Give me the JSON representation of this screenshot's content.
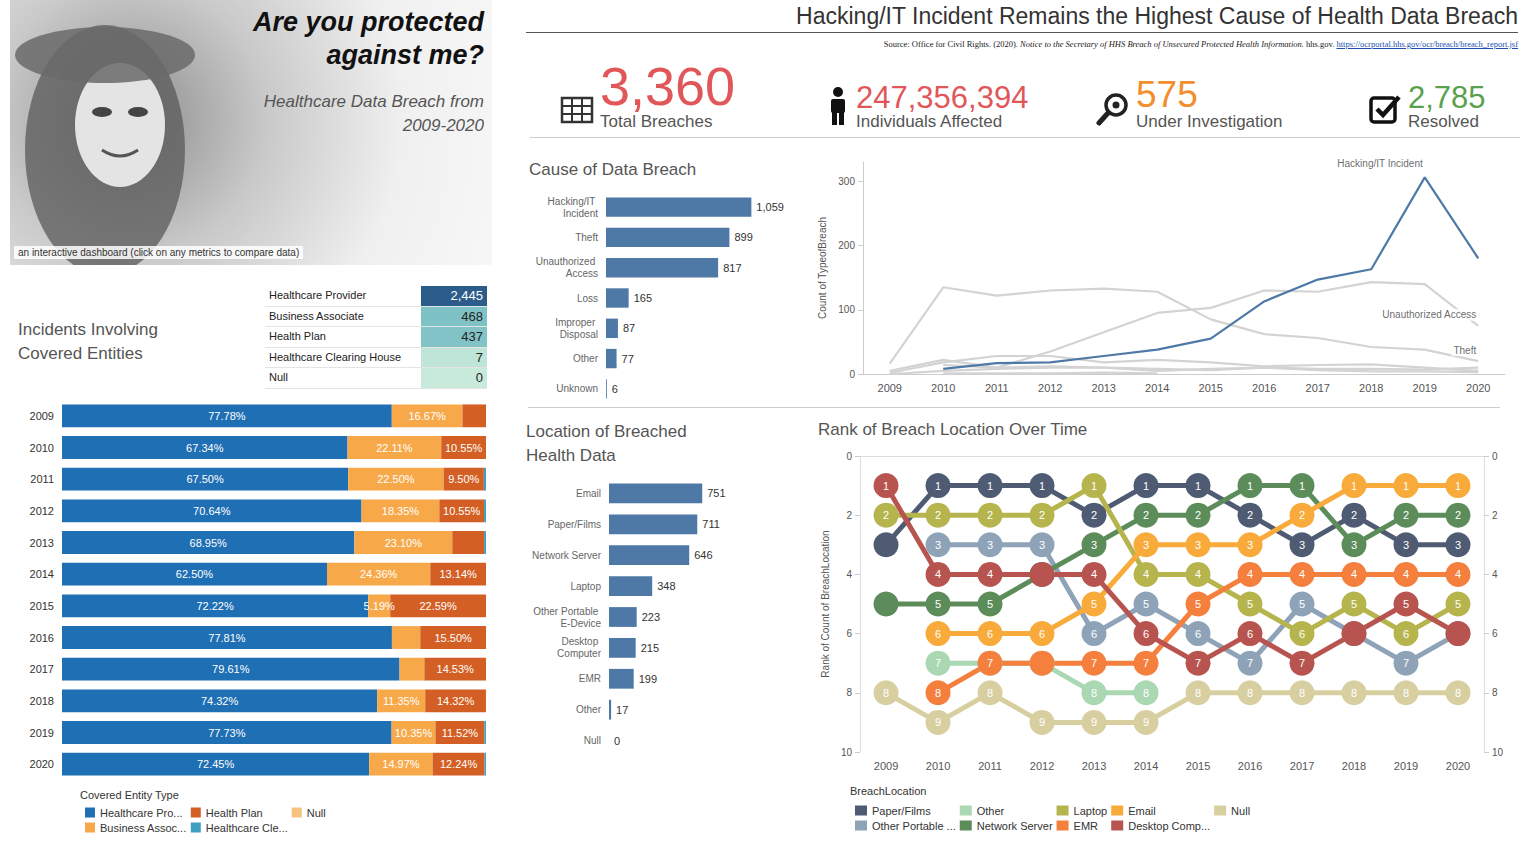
{
  "header": {
    "headline": "Are you protected against me?",
    "subtitle": "Healthcare Data Breach from 2009-2020",
    "caption": "an interactive dashboard (click on any metrics to compare data)",
    "title": "Hacking/IT Incident Remains the Highest Cause of Health Data Breach",
    "source": "Source: Office for Civil Rights. (2020).",
    "source_title": "Notice to the Secretary of HHS Breach of Unsecured Protected Health Information.",
    "source_site": "hhs.gov.",
    "source_url": "https://ocrportal.hhs.gov/ocr/breach/breach_report.jsf"
  },
  "kpis": [
    {
      "value": "3,360",
      "text": "Total Breaches",
      "color": "#e15759"
    },
    {
      "value": "247,356,394",
      "text": "Individuals Affected",
      "color": "#e15759"
    },
    {
      "value": "575",
      "text": "Under Investigation",
      "color": "#f28e2b"
    },
    {
      "value": "2,785",
      "text": "Resolved",
      "color": "#59a14f"
    }
  ],
  "table": {
    "title": "Incidents Involving Covered Entities",
    "rows": [
      {
        "name": "Healthcare Provider",
        "value": 2445,
        "label": "2,445"
      },
      {
        "name": "Business Associate",
        "value": 468,
        "label": "468"
      },
      {
        "name": "Health Plan",
        "value": 437,
        "label": "437"
      },
      {
        "name": "Healthcare Clearing House",
        "value": 7,
        "label": "7"
      },
      {
        "name": "Null",
        "value": 0,
        "label": "0"
      }
    ]
  },
  "chart_data": [
    {
      "type": "bar",
      "orientation": "horizontal",
      "stacked": true,
      "data_labels": true,
      "tick_labels": "y",
      "grid": false,
      "legend": "bottom",
      "legend_title": "Covered Entity Type",
      "categories": [
        "2009",
        "2010",
        "2011",
        "2012",
        "2013",
        "2014",
        "2015",
        "2016",
        "2017",
        "2018",
        "2019",
        "2020"
      ],
      "xlim": [
        0,
        100
      ],
      "series": [
        {
          "name": "Healthcare Pro...",
          "color": "#1f6fb4",
          "values": [
            77.78,
            67.34,
            67.5,
            70.64,
            68.95,
            62.5,
            72.22,
            77.81,
            79.61,
            74.32,
            77.73,
            72.45
          ],
          "value_labels": [
            "77.78%",
            "67.34%",
            "67.50%",
            "70.64%",
            "68.95%",
            "62.50%",
            "72.22%",
            "77.81%",
            "79.61%",
            "74.32%",
            "77.73%",
            "72.45%"
          ]
        },
        {
          "name": "Business Assoc...",
          "color": "#f7a94a",
          "values": [
            16.67,
            22.11,
            22.5,
            18.35,
            23.1,
            24.36,
            5.19,
            6.69,
            5.86,
            11.35,
            10.35,
            14.97
          ],
          "value_labels": [
            "16.67%",
            "22.11%",
            "22.50%",
            "18.35%",
            "23.10%",
            "24.36%",
            "5.19%",
            null,
            null,
            "11.35%",
            "10.35%",
            "14.97%"
          ]
        },
        {
          "name": "Health Plan",
          "color": "#d35f25",
          "values": [
            5.55,
            10.55,
            9.5,
            10.55,
            7.5,
            13.14,
            22.59,
            15.5,
            14.53,
            14.32,
            11.52,
            12.24
          ],
          "value_labels": [
            null,
            "10.55%",
            "9.50%",
            "10.55%",
            null,
            "13.14%",
            "22.59%",
            "15.50%",
            "14.53%",
            "14.32%",
            "11.52%",
            "12.24%"
          ]
        },
        {
          "name": "Healthcare Cle...",
          "color": "#3f9fc0",
          "values": [
            0,
            0,
            0.5,
            0.46,
            0.45,
            0,
            0,
            0,
            0,
            0,
            0.4,
            0.34
          ],
          "value_labels": [
            null,
            null,
            null,
            null,
            null,
            null,
            null,
            null,
            null,
            null,
            null,
            null
          ]
        },
        {
          "name": "Null",
          "color": "#f7c27e",
          "values": [
            0,
            0,
            0,
            0,
            0,
            0,
            0,
            0,
            0,
            0,
            0,
            0
          ],
          "value_labels": [
            null,
            null,
            null,
            null,
            null,
            null,
            null,
            null,
            null,
            null,
            null,
            null
          ]
        }
      ]
    },
    {
      "type": "bar",
      "orientation": "horizontal",
      "title": "Cause of Data Breach",
      "data_labels": true,
      "tick_labels": "y",
      "grid": false,
      "color": "#4e79a7",
      "xlim": [
        0,
        1100
      ],
      "categories": [
        "Hacking/IT Incident",
        "Theft",
        "Unauthorized Access",
        "Loss",
        "Improper Disposal",
        "Other",
        "Unknown"
      ],
      "values": [
        1059,
        899,
        817,
        165,
        87,
        77,
        6
      ],
      "value_labels": [
        "1,059",
        "899",
        "817",
        "165",
        "87",
        "77",
        "6"
      ]
    },
    {
      "type": "line",
      "y_label": "Count of TypeofBreach",
      "grid": false,
      "marker": "none",
      "categories": [
        "2009",
        "2010",
        "2011",
        "2012",
        "2013",
        "2014",
        "2015",
        "2016",
        "2017",
        "2018",
        "2019",
        "2020"
      ],
      "ylim": [
        0,
        330
      ],
      "yticks": [
        0,
        100,
        200,
        300
      ],
      "series": [
        {
          "name": "Theft",
          "color": "#d3d3d3",
          "values": [
            16,
            135,
            122,
            130,
            133,
            128,
            85,
            62,
            56,
            42,
            38,
            20
          ]
        },
        {
          "name": "Unauthorized Access",
          "color": "#d3d3d3",
          "values": [
            5,
            22,
            10,
            35,
            65,
            95,
            103,
            130,
            128,
            143,
            140,
            75
          ]
        },
        {
          "name": "Loss",
          "color": "#d3d3d3",
          "values": [
            2,
            18,
            28,
            28,
            18,
            22,
            18,
            12,
            14,
            15,
            10,
            5
          ]
        },
        {
          "name": "Improper Disposal",
          "color": "#d3d3d3",
          "values": [
            0,
            5,
            8,
            10,
            10,
            8,
            6,
            10,
            8,
            8,
            7,
            10
          ]
        },
        {
          "name": "Other",
          "color": "#d3d3d3",
          "values": [
            null,
            14,
            10,
            12,
            10,
            5,
            8,
            10,
            6,
            4,
            4,
            3
          ]
        },
        {
          "name": "Unknown",
          "color": "#d3d3d3",
          "values": [
            null,
            1,
            1,
            1,
            2,
            1,
            null,
            null,
            null,
            null,
            null,
            null
          ]
        },
        {
          "name": "Hacking/IT Incident",
          "color": "#4e79a7",
          "values": [
            null,
            8,
            17,
            18,
            28,
            38,
            55,
            113,
            147,
            163,
            306,
            180
          ]
        }
      ],
      "annotations": [
        {
          "text": "Hacking/IT Incident",
          "x": "2019",
          "y": 310
        },
        {
          "text": "Unauthorized Access",
          "x": "2020",
          "y": 75
        },
        {
          "text": "Theft",
          "x": "2020",
          "y": 20
        }
      ]
    },
    {
      "type": "bar",
      "orientation": "horizontal",
      "title": "Location of Breached Health Data",
      "data_labels": true,
      "tick_labels": "y",
      "grid": false,
      "color": "#4e79a7",
      "xlim": [
        0,
        1200
      ],
      "categories": [
        "Email",
        "Paper/Films",
        "Network Server",
        "Laptop",
        "Other Portable E-Device",
        "Desktop Computer",
        "EMR",
        "Other",
        "Null"
      ],
      "values": [
        751,
        711,
        646,
        348,
        223,
        215,
        199,
        17,
        0
      ]
    },
    {
      "type": "bump",
      "title": "Rank of Breach Location Over Time",
      "y_label": "Rank of Count of BreachLocation",
      "marker": "circle",
      "data_labels": true,
      "grid": false,
      "legend": "bottom",
      "legend_title": "BreachLocation",
      "categories": [
        "2009",
        "2010",
        "2011",
        "2012",
        "2013",
        "2014",
        "2015",
        "2016",
        "2017",
        "2018",
        "2019",
        "2020"
      ],
      "ylim": [
        0,
        10
      ],
      "yticks": [
        0,
        2,
        4,
        6,
        8,
        10
      ],
      "series": [
        {
          "name": "Paper/Films",
          "color": "#4e5b73",
          "values": [
            3,
            1,
            1,
            1,
            2,
            1,
            1,
            2,
            3,
            2,
            3,
            3
          ],
          "value_labels": [
            null,
            "1",
            "1",
            "1",
            "2",
            "1",
            "1",
            "2",
            "3",
            "2",
            "3",
            "3"
          ]
        },
        {
          "name": "Other Portable ...",
          "color": "#8fa3b8",
          "values": [
            null,
            3,
            3,
            3,
            6,
            5,
            6,
            7,
            5,
            6,
            7,
            6
          ],
          "value_labels": [
            null,
            "3",
            "3",
            "3",
            "6",
            "5",
            "6",
            "7",
            "5",
            null,
            "7",
            null
          ]
        },
        {
          "name": "Other",
          "color": "#a9d8b2",
          "values": [
            null,
            7,
            7,
            7,
            8,
            8,
            null,
            null,
            null,
            null,
            null,
            null
          ],
          "value_labels": [
            null,
            "7",
            null,
            null,
            "8",
            "8",
            null,
            null,
            null,
            null,
            null,
            null
          ]
        },
        {
          "name": "Network Server",
          "color": "#5b8c5a",
          "values": [
            5,
            5,
            5,
            4,
            3,
            2,
            2,
            1,
            1,
            3,
            2,
            2
          ],
          "value_labels": [
            null,
            "5",
            "5",
            null,
            "3",
            "2",
            "2",
            "1",
            "1",
            "3",
            "2",
            "2"
          ]
        },
        {
          "name": "Laptop",
          "color": "#b6b54d",
          "values": [
            2,
            2,
            2,
            2,
            1,
            4,
            4,
            5,
            6,
            5,
            6,
            5
          ],
          "value_labels": [
            "2",
            "2",
            "2",
            "2",
            "1",
            "4",
            "4",
            "5",
            "6",
            "5",
            "6",
            "5"
          ]
        },
        {
          "name": "EMR",
          "color": "#f57f3d",
          "values": [
            null,
            8,
            7,
            7,
            7,
            7,
            5,
            4,
            4,
            4,
            4,
            4
          ],
          "value_labels": [
            null,
            "8",
            "7",
            null,
            "7",
            "7",
            "5",
            "4",
            "4",
            "4",
            "4",
            "4"
          ]
        },
        {
          "name": "Email",
          "color": "#f8aa3b",
          "values": [
            null,
            6,
            6,
            6,
            5,
            3,
            3,
            3,
            2,
            1,
            1,
            1
          ],
          "value_labels": [
            null,
            "6",
            "6",
            "6",
            "5",
            "3",
            "3",
            "3",
            "2",
            "1",
            "1",
            "1"
          ]
        },
        {
          "name": "Desktop Comp...",
          "color": "#b85450",
          "values": [
            1,
            4,
            4,
            4,
            4,
            6,
            7,
            6,
            7,
            6,
            5,
            6
          ],
          "value_labels": [
            "1",
            "4",
            "4",
            null,
            "4",
            "6",
            "7",
            "6",
            "7",
            null,
            "5",
            null
          ]
        },
        {
          "name": "Null",
          "color": "#d8cfa1",
          "values": [
            8,
            9,
            8,
            9,
            9,
            9,
            8,
            8,
            8,
            8,
            8,
            8
          ],
          "value_labels": [
            "8",
            "9",
            "8",
            "9",
            "9",
            "9",
            "8",
            "8",
            "8",
            "8",
            "8",
            "8"
          ]
        }
      ]
    }
  ]
}
